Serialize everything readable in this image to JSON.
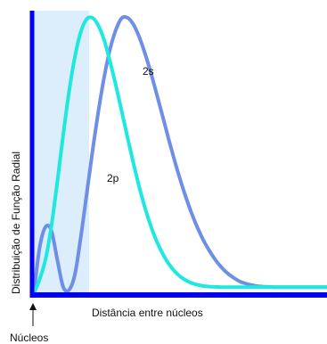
{
  "chart_data": {
    "type": "line",
    "title": "",
    "xlabel": "Distância entre núcleos",
    "ylabel": "Distribuição de Função Radial",
    "annotations": {
      "nucleus": "Núcleos",
      "label_2s": "2s",
      "label_2p": "2p"
    },
    "xlim": [
      0,
      10
    ],
    "ylim": [
      0,
      1
    ],
    "grid": false,
    "colors": {
      "axis": "#0000ee",
      "shade": "#dcedfb",
      "s2": "#6f8fe6",
      "p2": "#1ee8e0"
    },
    "series": [
      {
        "name": "2s",
        "x": [
          0,
          0.2,
          0.4,
          0.6,
          0.8,
          1,
          1.2,
          1.4,
          1.6,
          1.8,
          2,
          2.2,
          2.4,
          2.6,
          2.8,
          3,
          3.2,
          3.4,
          3.6,
          3.8,
          4,
          4.2,
          4.4,
          4.6,
          4.8,
          5,
          5.2,
          5.4,
          5.6,
          5.8,
          6,
          6.2,
          6.4,
          6.6,
          6.8,
          7,
          7.2,
          7.4,
          7.6,
          7.8,
          8,
          8.2,
          8.4,
          8.6,
          8.8,
          9,
          9.2,
          9.4,
          9.6,
          9.8,
          10
        ],
        "values": [
          0,
          0.168,
          0.241,
          0.227,
          0.122,
          0.023,
          0.012,
          0.069,
          0.202,
          0.358,
          0.515,
          0.66,
          0.786,
          0.886,
          0.957,
          0.999,
          1.0,
          0.975,
          0.929,
          0.868,
          0.797,
          0.719,
          0.639,
          0.559,
          0.482,
          0.41,
          0.344,
          0.285,
          0.234,
          0.189,
          0.152,
          0.12,
          0.094,
          0.073,
          0.057,
          0.044,
          0.036,
          0.03,
          0.026,
          0.024,
          0.023,
          0.022,
          0.022,
          0.022,
          0.022,
          0.022,
          0.022,
          0.022,
          0.022,
          0.022,
          0.022
        ]
      },
      {
        "name": "2p",
        "x": [
          0,
          0.2,
          0.4,
          0.6,
          0.8,
          1,
          1.2,
          1.4,
          1.6,
          1.8,
          2,
          2.2,
          2.4,
          2.6,
          2.8,
          3,
          3.2,
          3.4,
          3.6,
          3.8,
          4,
          4.2,
          4.4,
          4.6,
          4.8,
          5,
          5.2,
          5.4,
          5.6,
          5.8,
          6,
          6.2,
          6.4,
          6.6,
          6.8,
          7,
          7.2,
          7.4,
          7.6,
          7.8,
          8,
          8.2,
          8.4,
          8.6,
          8.8,
          9,
          9.2,
          9.4,
          9.6,
          9.8,
          10
        ],
        "values": [
          0,
          0.051,
          0.125,
          0.244,
          0.404,
          0.574,
          0.732,
          0.859,
          0.948,
          0.995,
          1.0,
          0.972,
          0.918,
          0.841,
          0.754,
          0.659,
          0.563,
          0.47,
          0.384,
          0.307,
          0.241,
          0.186,
          0.142,
          0.107,
          0.08,
          0.06,
          0.046,
          0.036,
          0.03,
          0.026,
          0.024,
          0.023,
          0.022,
          0.022,
          0.022,
          0.022,
          0.022,
          0.022,
          0.022,
          0.022,
          0.022,
          0.022,
          0.022,
          0.022,
          0.022,
          0.022,
          0.022,
          0.022,
          0.022,
          0.022,
          0.022
        ]
      }
    ]
  }
}
